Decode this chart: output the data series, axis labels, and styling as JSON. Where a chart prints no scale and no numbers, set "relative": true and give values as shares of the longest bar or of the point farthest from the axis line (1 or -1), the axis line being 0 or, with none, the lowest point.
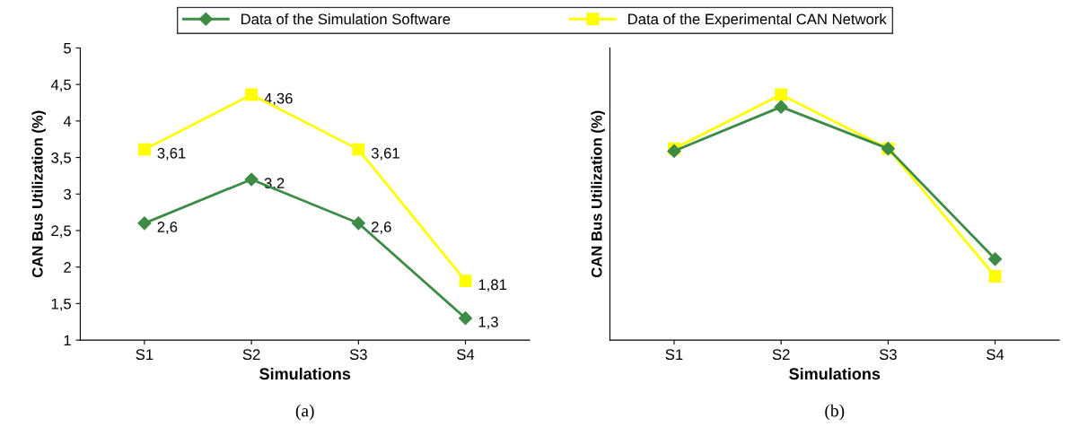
{
  "chart_data": [
    {
      "type": "line",
      "categories": [
        "S1",
        "S2",
        "S3",
        "S4"
      ],
      "xlabel": "Simulations",
      "ylabel": "CAN Bus Utilization (%)",
      "ylim": [
        1,
        5
      ],
      "yticks": [
        1,
        {
          "value": 1.5,
          "label": "1,5"
        },
        2,
        {
          "value": 2.5,
          "label": "2,5"
        },
        3,
        {
          "value": 3.5,
          "label": "3,5"
        },
        4,
        {
          "value": 4.5,
          "label": "4,5"
        },
        5
      ],
      "series": [
        {
          "name": "Data of the Simulation Software",
          "color": "#3c8c46",
          "marker": "diamond",
          "values": [
            2.6,
            3.2,
            2.6,
            1.3
          ],
          "value_labels": [
            "2,6",
            "3,2",
            "2,6",
            "1,3"
          ]
        },
        {
          "name": "Data of the Experimental CAN Network",
          "color": "#ffff00",
          "marker": "square",
          "values": [
            3.61,
            4.36,
            3.61,
            1.81
          ],
          "value_labels": [
            "3,61",
            "4,36",
            "3,61",
            "1,81"
          ]
        }
      ],
      "legend": "top",
      "grid": false,
      "annotations": [
        "(a)"
      ]
    },
    {
      "type": "line",
      "categories": [
        "S1",
        "S2",
        "S3",
        "S4"
      ],
      "xlabel": "Simulations",
      "ylabel": "CAN Bus Utilization (%)",
      "relative": true,
      "series": [
        {
          "color": "#3c8c46",
          "marker": "diamond",
          "values": [
            0.77,
            0.95,
            0.78,
            0.33
          ]
        },
        {
          "color": "#ffff00",
          "marker": "square",
          "values": [
            0.78,
            1,
            0.78,
            0.26
          ]
        }
      ],
      "grid": false,
      "annotations": [
        "(b)"
      ]
    }
  ]
}
